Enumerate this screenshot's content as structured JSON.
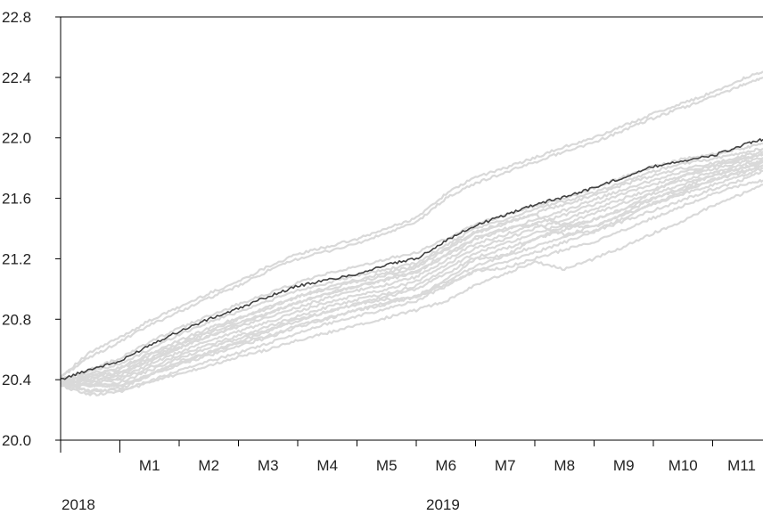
{
  "chart_data": {
    "type": "line",
    "title": "",
    "xlabel": "",
    "ylabel": "",
    "ylim": [
      20.0,
      22.8
    ],
    "xlim": [
      0,
      11.85
    ],
    "grid": false,
    "y_ticks": [
      "20.0",
      "20.4",
      "20.8",
      "21.2",
      "21.6",
      "22.0",
      "22.4",
      "22.8"
    ],
    "month_ticks": [
      "M1",
      "M2",
      "M3",
      "M4",
      "M5",
      "M6",
      "M7",
      "M8",
      "M9",
      "M10",
      "M11"
    ],
    "year_labels": [
      {
        "label": "2018",
        "x": 0.3
      },
      {
        "label": "2019",
        "x": 6.45
      }
    ],
    "colors": {
      "main": "#404040",
      "bands": "#d9d9d9",
      "axis": "#000000"
    },
    "x": [
      0,
      0.5,
      1,
      1.5,
      2,
      2.5,
      3,
      3.5,
      4,
      4.5,
      5,
      5.5,
      6,
      6.5,
      7,
      7.5,
      8,
      8.5,
      9,
      9.5,
      10,
      10.5,
      11,
      11.5,
      11.85
    ],
    "series": [
      {
        "role": "main",
        "values": [
          20.4,
          20.47,
          20.52,
          20.63,
          20.72,
          20.8,
          20.87,
          20.95,
          21.02,
          21.06,
          21.1,
          21.16,
          21.2,
          21.32,
          21.42,
          21.49,
          21.56,
          21.61,
          21.67,
          21.74,
          21.81,
          21.85,
          21.88,
          21.95,
          21.99
        ]
      },
      {
        "role": "band",
        "values": [
          20.42,
          20.58,
          20.68,
          20.79,
          20.88,
          20.97,
          21.05,
          21.15,
          21.23,
          21.28,
          21.33,
          21.4,
          21.47,
          21.63,
          21.74,
          21.8,
          21.87,
          21.94,
          22.0,
          22.08,
          22.16,
          22.23,
          22.3,
          22.39,
          22.44
        ]
      },
      {
        "role": "band",
        "values": [
          20.42,
          20.55,
          20.65,
          20.76,
          20.85,
          20.94,
          21.02,
          21.12,
          21.2,
          21.25,
          21.3,
          21.37,
          21.44,
          21.6,
          21.7,
          21.77,
          21.84,
          21.91,
          21.97,
          22.05,
          22.13,
          22.2,
          22.27,
          22.35,
          22.4
        ]
      },
      {
        "role": "band",
        "values": [
          20.4,
          20.46,
          20.5,
          20.6,
          20.7,
          20.78,
          20.85,
          20.92,
          20.99,
          21.04,
          21.09,
          21.13,
          21.17,
          21.29,
          21.4,
          21.46,
          21.53,
          21.58,
          21.64,
          21.71,
          21.78,
          21.83,
          21.86,
          21.9,
          21.93
        ]
      },
      {
        "role": "band",
        "values": [
          20.39,
          20.44,
          20.48,
          20.57,
          20.66,
          20.74,
          20.81,
          20.87,
          20.95,
          21.0,
          21.05,
          21.09,
          21.14,
          21.26,
          21.37,
          21.43,
          21.5,
          21.56,
          21.62,
          21.69,
          21.75,
          21.8,
          21.83,
          21.88,
          21.91
        ]
      },
      {
        "role": "band",
        "values": [
          20.39,
          20.42,
          20.45,
          20.54,
          20.63,
          20.71,
          20.78,
          20.84,
          20.91,
          20.97,
          21.02,
          21.06,
          21.11,
          21.22,
          21.33,
          21.39,
          21.46,
          21.52,
          21.59,
          21.66,
          21.72,
          21.78,
          21.81,
          21.86,
          21.89
        ]
      },
      {
        "role": "band",
        "values": [
          20.38,
          20.4,
          20.43,
          20.52,
          20.61,
          20.69,
          20.75,
          20.81,
          20.88,
          20.94,
          20.99,
          21.03,
          21.08,
          21.19,
          21.3,
          21.36,
          21.43,
          21.49,
          21.56,
          21.63,
          21.69,
          21.75,
          21.79,
          21.84,
          21.87
        ]
      },
      {
        "role": "band",
        "values": [
          20.38,
          20.39,
          20.41,
          20.5,
          20.58,
          20.66,
          20.72,
          20.78,
          20.85,
          20.91,
          20.96,
          21.0,
          21.05,
          21.16,
          21.27,
          21.33,
          21.4,
          21.46,
          21.53,
          21.6,
          21.66,
          21.72,
          21.77,
          21.82,
          21.85
        ]
      },
      {
        "role": "band",
        "values": [
          20.38,
          20.38,
          20.4,
          20.48,
          20.56,
          20.63,
          20.69,
          20.75,
          20.82,
          20.88,
          20.93,
          20.97,
          21.02,
          21.13,
          21.24,
          21.3,
          21.37,
          21.43,
          21.5,
          21.57,
          21.63,
          21.69,
          21.75,
          21.8,
          21.84
        ]
      },
      {
        "role": "band",
        "values": [
          20.37,
          20.37,
          20.38,
          20.46,
          20.54,
          20.61,
          20.67,
          20.73,
          20.8,
          20.85,
          20.9,
          20.95,
          21.0,
          21.1,
          21.21,
          21.27,
          21.33,
          21.39,
          21.46,
          21.53,
          21.6,
          21.66,
          21.72,
          21.78,
          21.82
        ]
      },
      {
        "role": "band",
        "values": [
          20.38,
          20.43,
          20.47,
          20.56,
          20.64,
          20.72,
          20.8,
          20.88,
          20.95,
          21.01,
          21.06,
          21.11,
          21.15,
          21.27,
          21.38,
          21.44,
          21.49,
          21.42,
          21.41,
          21.5,
          21.6,
          21.67,
          21.75,
          21.8,
          21.84
        ]
      },
      {
        "role": "band",
        "values": [
          20.38,
          20.41,
          20.44,
          20.53,
          20.61,
          20.69,
          20.76,
          20.84,
          20.91,
          20.97,
          21.02,
          21.07,
          21.12,
          21.23,
          21.34,
          21.4,
          21.43,
          21.36,
          21.38,
          21.47,
          21.57,
          21.64,
          21.72,
          21.77,
          21.82
        ]
      },
      {
        "role": "band",
        "values": [
          20.37,
          20.36,
          20.36,
          20.43,
          20.5,
          20.56,
          20.62,
          20.68,
          20.75,
          20.8,
          20.86,
          20.91,
          20.95,
          21.05,
          21.15,
          21.22,
          21.28,
          21.35,
          21.42,
          21.49,
          21.56,
          21.63,
          21.69,
          21.75,
          21.8
        ]
      },
      {
        "role": "band",
        "values": [
          20.36,
          20.33,
          20.33,
          20.39,
          20.46,
          20.52,
          20.58,
          20.64,
          20.71,
          20.77,
          20.82,
          20.87,
          20.92,
          21.02,
          21.12,
          21.18,
          21.24,
          21.31,
          21.38,
          21.45,
          21.52,
          21.59,
          21.66,
          21.72,
          21.78
        ]
      },
      {
        "role": "band",
        "values": [
          20.36,
          20.36,
          20.36,
          20.43,
          20.52,
          20.58,
          20.64,
          20.69,
          20.76,
          20.81,
          20.86,
          20.9,
          20.95,
          21.06,
          21.2,
          21.22,
          21.33,
          21.41,
          21.46,
          21.53,
          21.64,
          21.75,
          21.82,
          21.86,
          21.89
        ]
      },
      {
        "role": "band",
        "values": [
          20.39,
          20.47,
          20.54,
          20.65,
          20.74,
          20.82,
          20.9,
          20.97,
          21.04,
          21.1,
          21.15,
          21.2,
          21.24,
          21.33,
          21.43,
          21.49,
          21.55,
          21.6,
          21.67,
          21.74,
          21.81,
          21.86,
          21.89,
          21.93,
          21.96
        ]
      },
      {
        "role": "band",
        "values": [
          20.38,
          20.32,
          20.34,
          20.43,
          20.51,
          20.58,
          20.65,
          20.72,
          20.79,
          20.85,
          20.9,
          20.93,
          20.95,
          21.03,
          21.12,
          21.14,
          21.2,
          21.26,
          21.31,
          21.39,
          21.47,
          21.55,
          21.63,
          21.69,
          21.72
        ]
      },
      {
        "role": "band",
        "values": [
          20.36,
          20.3,
          20.32,
          20.38,
          20.44,
          20.49,
          20.55,
          20.6,
          20.66,
          20.71,
          20.76,
          20.81,
          20.86,
          20.92,
          21.03,
          21.1,
          21.18,
          21.13,
          21.2,
          21.28,
          21.37,
          21.45,
          21.55,
          21.63,
          21.69
        ]
      }
    ]
  }
}
